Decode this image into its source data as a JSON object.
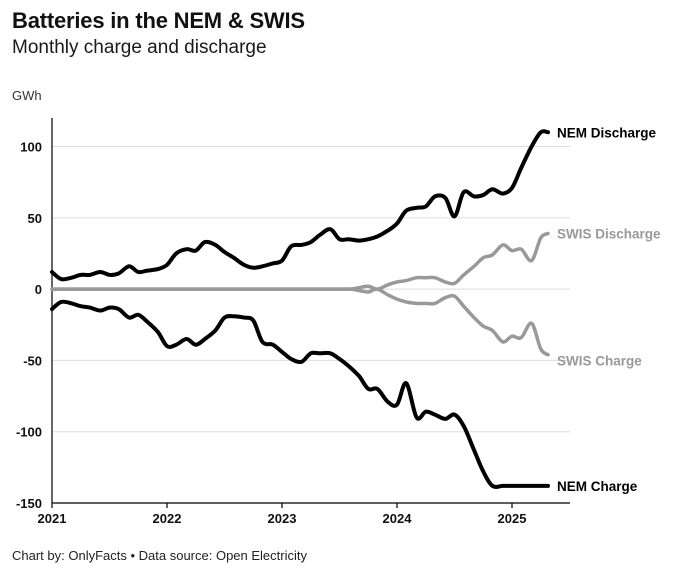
{
  "header": {
    "title": "Batteries in the NEM & SWIS",
    "subtitle": "Monthly charge and discharge",
    "unit": "GWh"
  },
  "footer": {
    "credit": "Chart by: OnlyFacts • Data source: Open Electricity"
  },
  "colors": {
    "nem": "#000000",
    "swis": "#999999",
    "grid": "#dddddd",
    "axis": "#000000"
  },
  "chart_data": {
    "type": "line",
    "ylabel": "GWh",
    "ylim": [
      -150,
      120
    ],
    "xlim": [
      2021.0,
      2025.5
    ],
    "y_ticks": [
      100,
      50,
      0,
      -50,
      -100,
      -150
    ],
    "x_ticks": [
      2021,
      2022,
      2023,
      2024,
      2025
    ],
    "grid": "horizontal",
    "series": [
      {
        "name": "NEM Discharge",
        "group": "nem",
        "x": [
          2021.0,
          2021.08,
          2021.17,
          2021.25,
          2021.33,
          2021.42,
          2021.5,
          2021.58,
          2021.67,
          2021.75,
          2021.83,
          2021.92,
          2022.0,
          2022.08,
          2022.17,
          2022.25,
          2022.33,
          2022.42,
          2022.5,
          2022.58,
          2022.67,
          2022.75,
          2022.83,
          2022.92,
          2023.0,
          2023.08,
          2023.17,
          2023.25,
          2023.33,
          2023.42,
          2023.5,
          2023.58,
          2023.67,
          2023.75,
          2023.83,
          2023.92,
          2024.0,
          2024.08,
          2024.17,
          2024.25,
          2024.33,
          2024.42,
          2024.5,
          2024.58,
          2024.67,
          2024.75,
          2024.83,
          2024.92,
          2025.0,
          2025.08,
          2025.17,
          2025.25,
          2025.33
        ],
        "values": [
          12,
          7,
          8,
          10,
          10,
          12,
          10,
          11,
          16,
          12,
          13,
          14,
          17,
          25,
          28,
          27,
          33,
          31,
          26,
          22,
          17,
          15,
          16,
          18,
          20,
          30,
          31,
          33,
          38,
          42,
          35,
          35,
          34,
          35,
          37,
          41,
          46,
          55,
          57,
          58,
          65,
          64,
          51,
          68,
          65,
          66,
          70,
          67,
          71,
          85,
          100,
          110,
          110
        ]
      },
      {
        "name": "SWIS Discharge",
        "group": "swis",
        "x": [
          2021.0,
          2021.5,
          2022.0,
          2022.5,
          2023.0,
          2023.5,
          2023.6,
          2023.67,
          2023.75,
          2023.83,
          2023.92,
          2024.0,
          2024.08,
          2024.17,
          2024.25,
          2024.33,
          2024.42,
          2024.5,
          2024.58,
          2024.67,
          2024.75,
          2024.83,
          2024.92,
          2025.0,
          2025.08,
          2025.17,
          2025.25,
          2025.33
        ],
        "values": [
          0,
          0,
          0,
          0,
          0,
          0,
          0,
          1,
          2,
          0,
          3,
          5,
          6,
          8,
          8,
          8,
          5,
          4,
          10,
          16,
          22,
          24,
          31,
          27,
          28,
          20,
          36,
          39
        ]
      },
      {
        "name": "SWIS Charge",
        "group": "swis",
        "x": [
          2021.0,
          2021.5,
          2022.0,
          2022.5,
          2023.0,
          2023.5,
          2023.6,
          2023.67,
          2023.75,
          2023.83,
          2023.92,
          2024.0,
          2024.08,
          2024.17,
          2024.25,
          2024.33,
          2024.42,
          2024.5,
          2024.58,
          2024.67,
          2024.75,
          2024.83,
          2024.92,
          2025.0,
          2025.08,
          2025.17,
          2025.25,
          2025.33
        ],
        "values": [
          0,
          0,
          0,
          0,
          0,
          0,
          0,
          -1,
          -2,
          0,
          -4,
          -7,
          -9,
          -10,
          -10,
          -10,
          -6,
          -5,
          -12,
          -20,
          -26,
          -29,
          -37,
          -33,
          -34,
          -24,
          -42,
          -46
        ]
      },
      {
        "name": "NEM Charge",
        "group": "nem",
        "x": [
          2021.0,
          2021.08,
          2021.17,
          2021.25,
          2021.33,
          2021.42,
          2021.5,
          2021.58,
          2021.67,
          2021.75,
          2021.83,
          2021.92,
          2022.0,
          2022.08,
          2022.17,
          2022.25,
          2022.33,
          2022.42,
          2022.5,
          2022.58,
          2022.67,
          2022.75,
          2022.83,
          2022.92,
          2023.0,
          2023.08,
          2023.17,
          2023.25,
          2023.33,
          2023.42,
          2023.5,
          2023.58,
          2023.67,
          2023.75,
          2023.83,
          2023.92,
          2024.0,
          2024.08,
          2024.17,
          2024.25,
          2024.33,
          2024.42,
          2024.5,
          2024.58,
          2024.67,
          2024.75,
          2024.83,
          2024.92,
          2025.0,
          2025.08,
          2025.17,
          2025.25,
          2025.33
        ],
        "values": [
          -14,
          -9,
          -10,
          -12,
          -13,
          -15,
          -13,
          -14,
          -20,
          -18,
          -23,
          -30,
          -40,
          -39,
          -35,
          -39,
          -35,
          -29,
          -20,
          -19,
          -20,
          -22,
          -37,
          -39,
          -44,
          -49,
          -51,
          -45,
          -45,
          -45,
          -49,
          -54,
          -61,
          -70,
          -70,
          -79,
          -81,
          -66,
          -90,
          -86,
          -88,
          -91,
          -88,
          -96,
          -113,
          -128,
          -138,
          -138,
          -138,
          -138,
          -138,
          -138,
          -138
        ]
      }
    ]
  }
}
